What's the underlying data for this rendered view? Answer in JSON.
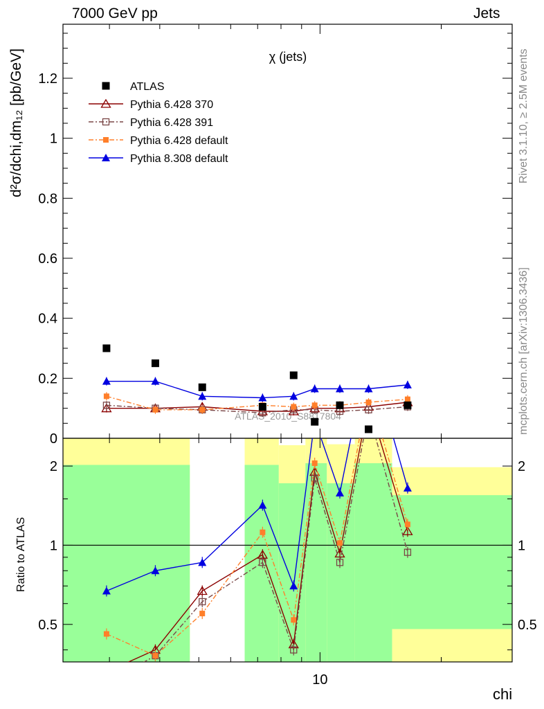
{
  "header": {
    "left": "7000 GeV pp",
    "right": "Jets",
    "side_top": "Rivet 3.1.10, ≥ 2.5M events",
    "side_bottom": "mcplots.cern.ch [arXiv:1306.3436]"
  },
  "chart_data": {
    "type": "scatter",
    "title": "χ (jets)",
    "watermark": "ATLAS_2010_S8817804",
    "ylabel": "d²σ/dchi,dm₁₂ [pb/GeV]",
    "ylabel_ratio": "Ratio to ATLAS",
    "xlabel": "chi",
    "xscale": "log",
    "xlim": [
      2.3,
      30
    ],
    "xtick_labels": [
      "10"
    ],
    "ylim": [
      0,
      1.38
    ],
    "yticks": [
      0,
      0.2,
      0.4,
      0.6,
      0.8,
      1,
      1.2
    ],
    "ratio_yscale": "log",
    "ratio_ylim": [
      0.36,
      2.55
    ],
    "ratio_yticks": [
      0.5,
      1,
      2
    ],
    "x": [
      2.95,
      3.9,
      5.1,
      7.2,
      8.6,
      9.7,
      11.2,
      13.2,
      16.5
    ],
    "atlas": [
      0.3,
      0.25,
      0.17,
      0.105,
      0.21,
      0.055,
      0.11,
      0.03,
      0.11
    ],
    "series": [
      {
        "name": "ATLAS",
        "color": "#000000",
        "marker": "square-filled",
        "line": "none"
      },
      {
        "name": "Pythia 6.428 370",
        "color": "#8b0000",
        "marker": "triangle-open",
        "line": "solid",
        "values": [
          0.1,
          0.1,
          0.105,
          0.09,
          0.09,
          0.1,
          0.1,
          0.105,
          0.12
        ],
        "ratio": [
          0.33,
          0.4,
          0.67,
          0.92,
          0.42,
          1.9,
          0.93,
          3.5,
          1.13
        ]
      },
      {
        "name": "Pythia 6.428 391",
        "color": "#7a4646",
        "marker": "square-open",
        "line": "dashdot",
        "values": [
          0.11,
          0.1,
          0.095,
          0.085,
          0.095,
          0.095,
          0.09,
          0.095,
          0.105
        ],
        "ratio": [
          0.3,
          0.38,
          0.61,
          0.86,
          0.4,
          1.8,
          0.86,
          3.2,
          0.94
        ]
      },
      {
        "name": "Pythia 6.428 default",
        "color": "#ff7f2a",
        "marker": "square-filled-small",
        "line": "dashdot",
        "values": [
          0.14,
          0.095,
          0.095,
          0.11,
          0.105,
          0.11,
          0.11,
          0.12,
          0.13
        ],
        "ratio": [
          0.46,
          0.38,
          0.55,
          1.12,
          0.52,
          2.05,
          1.02,
          3.9,
          1.2
        ]
      },
      {
        "name": "Pythia 8.308 default",
        "color": "#0000e0",
        "marker": "triangle-filled",
        "line": "solid",
        "values": [
          0.19,
          0.19,
          0.14,
          0.135,
          0.14,
          0.165,
          0.165,
          0.165,
          0.178
        ],
        "ratio": [
          0.67,
          0.8,
          0.86,
          1.42,
          0.7,
          3.0,
          1.58,
          5.5,
          1.65
        ]
      }
    ],
    "ratio_bands": [
      {
        "x0": 2.3,
        "x1": 4.75,
        "green": [
          0.3,
          2.02
        ],
        "yellow": [
          0.3,
          2.55
        ]
      },
      {
        "x0": 6.5,
        "x1": 7.9,
        "green": [
          0.3,
          2.02
        ],
        "yellow": [
          0.3,
          2.55
        ]
      },
      {
        "x0": 7.9,
        "x1": 9.2,
        "green": [
          0.3,
          1.72
        ],
        "yellow": [
          0.3,
          2.4
        ]
      },
      {
        "x0": 9.2,
        "x1": 10.4,
        "green": [
          0.3,
          2.05
        ],
        "yellow": [
          0.3,
          2.55
        ]
      },
      {
        "x0": 10.4,
        "x1": 12.2,
        "green": [
          0.3,
          1.72
        ],
        "yellow": [
          0.3,
          2.42
        ]
      },
      {
        "x0": 12.2,
        "x1": 15.1,
        "green": [
          0.3,
          2.05
        ],
        "yellow": [
          0.3,
          2.55
        ]
      },
      {
        "x0": 15.1,
        "x1": 30,
        "green": [
          0.48,
          1.55
        ],
        "yellow": [
          0.3,
          1.98
        ]
      }
    ],
    "legend_position": "top-left",
    "grid": false
  }
}
